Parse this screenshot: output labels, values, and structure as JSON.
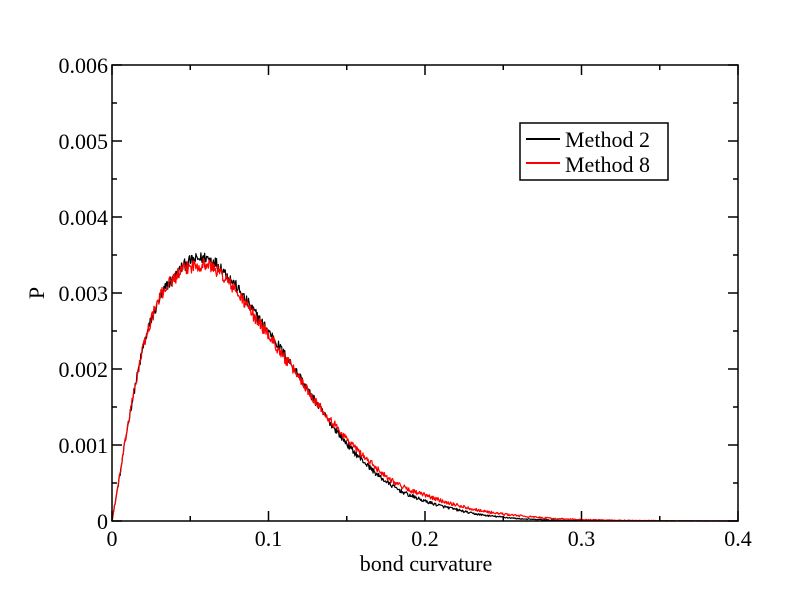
{
  "chart_data": {
    "type": "line",
    "xlabel": "bond curvature",
    "ylabel": "P",
    "xlim": [
      0,
      0.4
    ],
    "ylim": [
      0,
      0.006
    ],
    "x_ticks": [
      0,
      0.1,
      0.2,
      0.3,
      0.4
    ],
    "x_tick_labels": [
      "0",
      "0.1",
      "0.2",
      "0.3",
      "0.4"
    ],
    "y_ticks": [
      0,
      0.001,
      0.002,
      0.003,
      0.004,
      0.005,
      0.006
    ],
    "y_tick_labels": [
      "0",
      "0.001",
      "0.002",
      "0.003",
      "0.004",
      "0.005",
      "0.006"
    ],
    "grid": false,
    "legend_position": "top-right",
    "series": [
      {
        "name": "Method 2",
        "color": "#000000",
        "x": [
          0,
          0.005,
          0.01,
          0.015,
          0.02,
          0.025,
          0.03,
          0.035,
          0.04,
          0.045,
          0.05,
          0.055,
          0.06,
          0.065,
          0.07,
          0.075,
          0.08,
          0.085,
          0.09,
          0.095,
          0.1,
          0.105,
          0.11,
          0.115,
          0.12,
          0.125,
          0.13,
          0.135,
          0.14,
          0.145,
          0.15,
          0.155,
          0.16,
          0.165,
          0.17,
          0.175,
          0.18,
          0.185,
          0.19,
          0.195,
          0.2,
          0.21,
          0.22,
          0.23,
          0.24,
          0.25,
          0.26,
          0.27,
          0.28,
          0.29,
          0.3,
          0.32,
          0.34,
          0.36,
          0.38,
          0.4
        ],
        "y": [
          0,
          0.0006,
          0.00125,
          0.0018,
          0.0023,
          0.00265,
          0.0029,
          0.0031,
          0.0032,
          0.00335,
          0.00342,
          0.00345,
          0.00347,
          0.00342,
          0.00333,
          0.0032,
          0.00307,
          0.00292,
          0.00278,
          0.00263,
          0.0025,
          0.00235,
          0.0022,
          0.00205,
          0.0019,
          0.00172,
          0.00157,
          0.00142,
          0.00128,
          0.00115,
          0.00102,
          0.0009,
          0.0008,
          0.0007,
          0.0006,
          0.00052,
          0.00045,
          0.00039,
          0.00034,
          0.0003,
          0.00026,
          0.0002,
          0.00015,
          0.0001,
          7e-05,
          5e-05,
          3e-05,
          2e-05,
          1.2e-05,
          8e-06,
          5e-06,
          3e-06,
          2e-06,
          1e-06,
          5e-07,
          2e-07
        ],
        "noise": 8e-05
      },
      {
        "name": "Method 8",
        "color": "#ff0000",
        "x": [
          0,
          0.005,
          0.01,
          0.015,
          0.02,
          0.025,
          0.03,
          0.035,
          0.04,
          0.045,
          0.05,
          0.055,
          0.06,
          0.065,
          0.07,
          0.075,
          0.08,
          0.085,
          0.09,
          0.095,
          0.1,
          0.105,
          0.11,
          0.115,
          0.12,
          0.125,
          0.13,
          0.135,
          0.14,
          0.145,
          0.15,
          0.155,
          0.16,
          0.165,
          0.17,
          0.175,
          0.18,
          0.185,
          0.19,
          0.195,
          0.2,
          0.21,
          0.22,
          0.23,
          0.24,
          0.25,
          0.26,
          0.27,
          0.28,
          0.29,
          0.3,
          0.32,
          0.34,
          0.36,
          0.38,
          0.4
        ],
        "y": [
          0,
          0.0006,
          0.00125,
          0.0018,
          0.0023,
          0.00265,
          0.00292,
          0.0031,
          0.0032,
          0.0033,
          0.00335,
          0.00337,
          0.00338,
          0.00333,
          0.00325,
          0.00313,
          0.003,
          0.00287,
          0.00272,
          0.00258,
          0.00245,
          0.0023,
          0.00215,
          0.00202,
          0.00188,
          0.00172,
          0.00158,
          0.00145,
          0.00132,
          0.0012,
          0.00108,
          0.00097,
          0.00087,
          0.00077,
          0.00068,
          0.00059,
          0.00052,
          0.00046,
          0.00041,
          0.00037,
          0.00034,
          0.00027,
          0.00021,
          0.00016,
          0.00012,
          9e-05,
          7e-05,
          5e-05,
          3.5e-05,
          2.5e-05,
          1.8e-05,
          1e-05,
          6e-06,
          3e-06,
          2e-06,
          1e-06
        ],
        "noise": 9e-05
      }
    ]
  }
}
